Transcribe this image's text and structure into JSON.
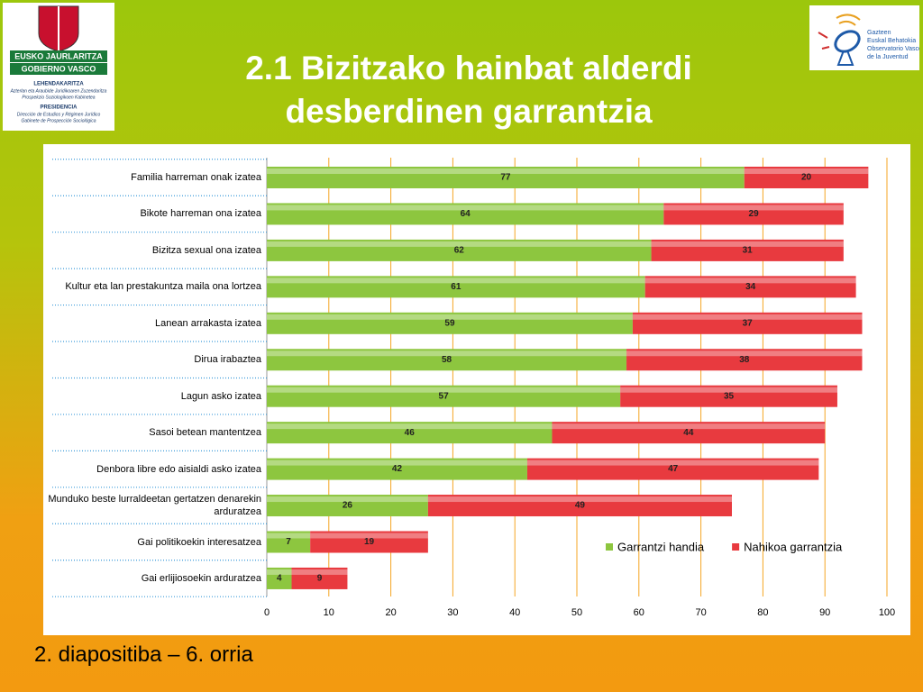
{
  "chart_data": {
    "type": "bar",
    "orientation": "horizontal",
    "stacked": true,
    "title": "2.1 Bizitzako hainbat alderdi desberdinen garrantzia",
    "categories": [
      "Familia harreman onak izatea",
      "Bikote harreman ona izatea",
      "Bizitza sexual ona izatea",
      "Kultur eta lan prestakuntza maila ona lortzea",
      "Lanean arrakasta izatea",
      "Dirua irabaztea",
      "Lagun asko izatea",
      "Sasoi betean mantentzea",
      "Denbora libre edo aisialdi asko izatea",
      "Munduko beste lurraldeetan gertatzen denarekin arduratzea",
      "Gai politikoekin interesatzea",
      "Gai erlijiosoekin arduratzea"
    ],
    "series": [
      {
        "name": "Garrantzi handia",
        "color": "#8dc63f",
        "values": [
          77,
          64,
          62,
          61,
          59,
          58,
          57,
          46,
          42,
          26,
          7,
          4
        ]
      },
      {
        "name": "Nahikoa garrantzia",
        "color": "#e83a3f",
        "values": [
          20,
          29,
          31,
          34,
          37,
          38,
          35,
          44,
          47,
          49,
          19,
          9
        ]
      }
    ],
    "xlim": [
      0,
      100
    ],
    "xticks": [
      0,
      10,
      20,
      30,
      40,
      50,
      60,
      70,
      80,
      90,
      100
    ],
    "grid": true,
    "grid_color": "#f5a623",
    "legend": "lower right"
  },
  "logo_left": {
    "name": "EUSKO JAURLARITZA",
    "name2": "GOBIERNO VASCO",
    "dept": "LEHENDAKARITZA",
    "dept_l1": "Azterlan eta Araubide Juridikoaren Zuzendaritza",
    "dept_l2": "Prospekzio Soziologikoen Kabinetea",
    "dept2": "PRESIDENCIA",
    "dept2_l1": "Dirección de Estudios y Régimen Jurídico",
    "dept2_l2": "Gabinete de Prospección Sociológica"
  },
  "logo_right": {
    "lines": [
      "Gazteen",
      "Euskal Behatokia",
      "Observatorio Vasco",
      "de la Juventud"
    ]
  },
  "footer": "2. diapositiba – 6. orria"
}
